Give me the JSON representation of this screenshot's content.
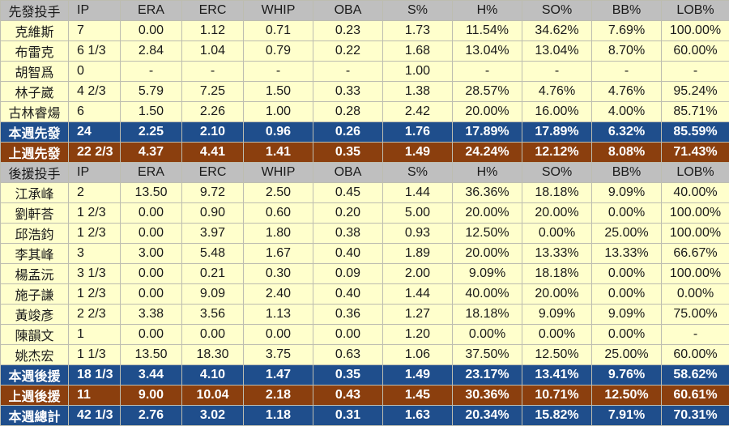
{
  "starters": {
    "header": [
      "先發投手",
      "IP",
      "ERA",
      "ERC",
      "WHIP",
      "OBA",
      "S%",
      "H%",
      "SO%",
      "BB%",
      "LOB%"
    ],
    "players": [
      [
        "克維斯",
        "7",
        "0.00",
        "1.12",
        "0.71",
        "0.23",
        "1.73",
        "11.54%",
        "34.62%",
        "7.69%",
        "100.00%"
      ],
      [
        "布雷克",
        "6 1/3",
        "2.84",
        "1.04",
        "0.79",
        "0.22",
        "1.68",
        "13.04%",
        "13.04%",
        "8.70%",
        "60.00%"
      ],
      [
        "胡智爲",
        "0",
        "-",
        "-",
        "-",
        "-",
        "1.00",
        "-",
        "-",
        "-",
        "-"
      ],
      [
        "林子崴",
        "4 2/3",
        "5.79",
        "7.25",
        "1.50",
        "0.33",
        "1.38",
        "28.57%",
        "4.76%",
        "4.76%",
        "95.24%"
      ],
      [
        "古林睿煬",
        "6",
        "1.50",
        "2.26",
        "1.00",
        "0.28",
        "2.42",
        "20.00%",
        "16.00%",
        "4.00%",
        "85.71%"
      ]
    ],
    "this_week": [
      "本週先發",
      "24",
      "2.25",
      "2.10",
      "0.96",
      "0.26",
      "1.76",
      "17.89%",
      "17.89%",
      "6.32%",
      "85.59%"
    ],
    "last_week": [
      "上週先發",
      "22 2/3",
      "4.37",
      "4.41",
      "1.41",
      "0.35",
      "1.49",
      "24.24%",
      "12.12%",
      "8.08%",
      "71.43%"
    ]
  },
  "relievers": {
    "header": [
      "後援投手",
      "IP",
      "ERA",
      "ERC",
      "WHIP",
      "OBA",
      "S%",
      "H%",
      "SO%",
      "BB%",
      "LOB%"
    ],
    "players": [
      [
        "江承峰",
        "2",
        "13.50",
        "9.72",
        "2.50",
        "0.45",
        "1.44",
        "36.36%",
        "18.18%",
        "9.09%",
        "40.00%"
      ],
      [
        "劉軒荅",
        "1 2/3",
        "0.00",
        "0.90",
        "0.60",
        "0.20",
        "5.00",
        "20.00%",
        "20.00%",
        "0.00%",
        "100.00%"
      ],
      [
        "邱浩鈞",
        "1 2/3",
        "0.00",
        "3.97",
        "1.80",
        "0.38",
        "0.93",
        "12.50%",
        "0.00%",
        "25.00%",
        "100.00%"
      ],
      [
        "李其峰",
        "3",
        "3.00",
        "5.48",
        "1.67",
        "0.40",
        "1.89",
        "20.00%",
        "13.33%",
        "13.33%",
        "66.67%"
      ],
      [
        "楊孟沅",
        "3 1/3",
        "0.00",
        "0.21",
        "0.30",
        "0.09",
        "2.00",
        "9.09%",
        "18.18%",
        "0.00%",
        "100.00%"
      ],
      [
        "施子謙",
        "1 2/3",
        "0.00",
        "9.09",
        "2.40",
        "0.40",
        "1.44",
        "40.00%",
        "20.00%",
        "0.00%",
        "0.00%"
      ],
      [
        "黃竣彥",
        "2 2/3",
        "3.38",
        "3.56",
        "1.13",
        "0.36",
        "1.27",
        "18.18%",
        "9.09%",
        "9.09%",
        "75.00%"
      ],
      [
        "陳韻文",
        "1",
        "0.00",
        "0.00",
        "0.00",
        "0.00",
        "1.20",
        "0.00%",
        "0.00%",
        "0.00%",
        "-"
      ],
      [
        "姚杰宏",
        "1 1/3",
        "13.50",
        "18.30",
        "3.75",
        "0.63",
        "1.06",
        "37.50%",
        "12.50%",
        "25.00%",
        "60.00%"
      ]
    ],
    "this_week": [
      "本週後援",
      "18 1/3",
      "3.44",
      "4.10",
      "1.47",
      "0.35",
      "1.49",
      "23.17%",
      "13.41%",
      "9.76%",
      "58.62%"
    ],
    "last_week": [
      "上週後援",
      "11",
      "9.00",
      "10.04",
      "2.18",
      "0.43",
      "1.45",
      "30.36%",
      "10.71%",
      "12.50%",
      "60.61%"
    ]
  },
  "week_total": [
    "本週總計",
    "42 1/3",
    "2.76",
    "3.02",
    "1.18",
    "0.31",
    "1.63",
    "20.34%",
    "15.82%",
    "7.91%",
    "70.31%"
  ]
}
